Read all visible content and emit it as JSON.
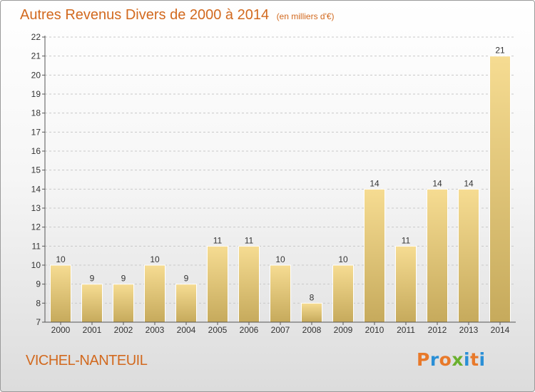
{
  "header": {
    "title": "Autres Revenus Divers de 2000 à 2014",
    "unit": "(en milliers d'€)"
  },
  "footer": {
    "commune": "VICHEL-NANTEUIL",
    "brand": "Proxiti",
    "brand_colors": [
      "#e8792a",
      "#2a8fd6",
      "#e8792a",
      "#6ab02e",
      "#2a8fd6",
      "#e8792a",
      "#2a8fd6"
    ]
  },
  "colors": {
    "title": "#d2691e",
    "bar_light": "#f6dc92",
    "bar_dark": "#c6aa5c",
    "axis": "#555555",
    "grid": "#c8c8c8"
  },
  "chart_data": {
    "type": "bar",
    "title": "Autres Revenus Divers de 2000 à 2014",
    "subtitle": "(en milliers d'€)",
    "xlabel": "",
    "ylabel": "",
    "categories": [
      "2000",
      "2001",
      "2002",
      "2003",
      "2004",
      "2005",
      "2006",
      "2007",
      "2008",
      "2009",
      "2010",
      "2011",
      "2012",
      "2013",
      "2014"
    ],
    "values": [
      10,
      9,
      9,
      10,
      9,
      11,
      11,
      10,
      8,
      10,
      14,
      11,
      14,
      14,
      21
    ],
    "ylim": [
      7,
      22
    ],
    "yticks": [
      7,
      8,
      9,
      10,
      11,
      12,
      13,
      14,
      15,
      16,
      17,
      18,
      19,
      20,
      21,
      22
    ],
    "grid": true,
    "data_labels": true
  }
}
